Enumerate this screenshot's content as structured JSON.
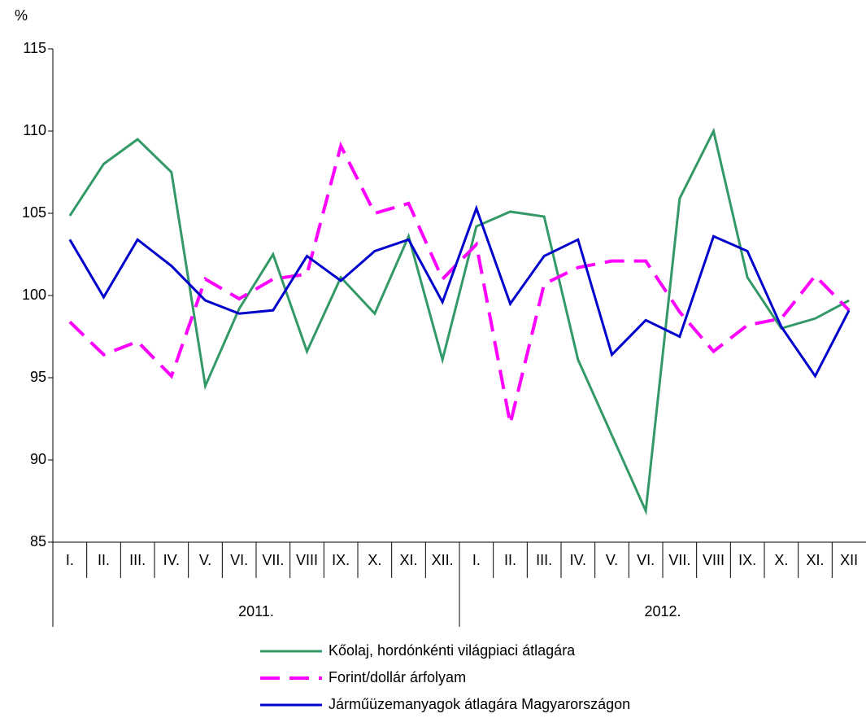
{
  "chart_data": {
    "type": "line",
    "y_unit": "%",
    "categories": [
      "I.",
      "II.",
      "III.",
      "IV.",
      "V.",
      "VI.",
      "VII.",
      "VIII",
      "IX.",
      "X.",
      "XI.",
      "XII.",
      "I.",
      "II.",
      "III.",
      "IV.",
      "V.",
      "VI.",
      "VII.",
      "VIII",
      "IX.",
      "X.",
      "XI.",
      "XII"
    ],
    "category_groups": [
      "2011.",
      "2012."
    ],
    "series": [
      {
        "name": "Kőolaj, hordónkénti világpiaci átlagára",
        "color": "#339966",
        "style": "solid",
        "values": [
          104.85,
          108.0,
          109.5,
          107.5,
          94.5,
          99.2,
          102.5,
          96.6,
          101.1,
          98.9,
          103.6,
          96.1,
          104.2,
          105.1,
          104.8,
          96.1,
          91.5,
          86.9,
          105.9,
          110.0,
          101.1,
          98.0,
          98.6,
          99.7
        ]
      },
      {
        "name": "Forint/dollár árfolyam",
        "color": "#ff00ff",
        "style": "dashed",
        "values": [
          98.4,
          96.4,
          97.2,
          95.1,
          101.0,
          99.8,
          101.0,
          101.3,
          109.1,
          105.0,
          105.6,
          101.0,
          103.1,
          92.2,
          100.7,
          101.7,
          102.1,
          102.1,
          99.0,
          96.6,
          98.2,
          98.6,
          101.2,
          99.1
        ]
      },
      {
        "name": "Járműüzemanyagok átlagára Magyarországon",
        "color": "#0000cc",
        "style": "solid",
        "values": [
          103.4,
          99.9,
          103.4,
          101.8,
          99.7,
          98.9,
          99.1,
          102.4,
          100.9,
          102.7,
          103.4,
          99.6,
          105.3,
          99.5,
          102.4,
          103.4,
          96.4,
          98.5,
          97.5,
          103.6,
          102.7,
          98.1,
          95.1,
          99.1
        ]
      }
    ],
    "ylim": [
      85,
      115
    ],
    "yticks": [
      85,
      90,
      95,
      100,
      105,
      110,
      115
    ],
    "grid": false
  }
}
